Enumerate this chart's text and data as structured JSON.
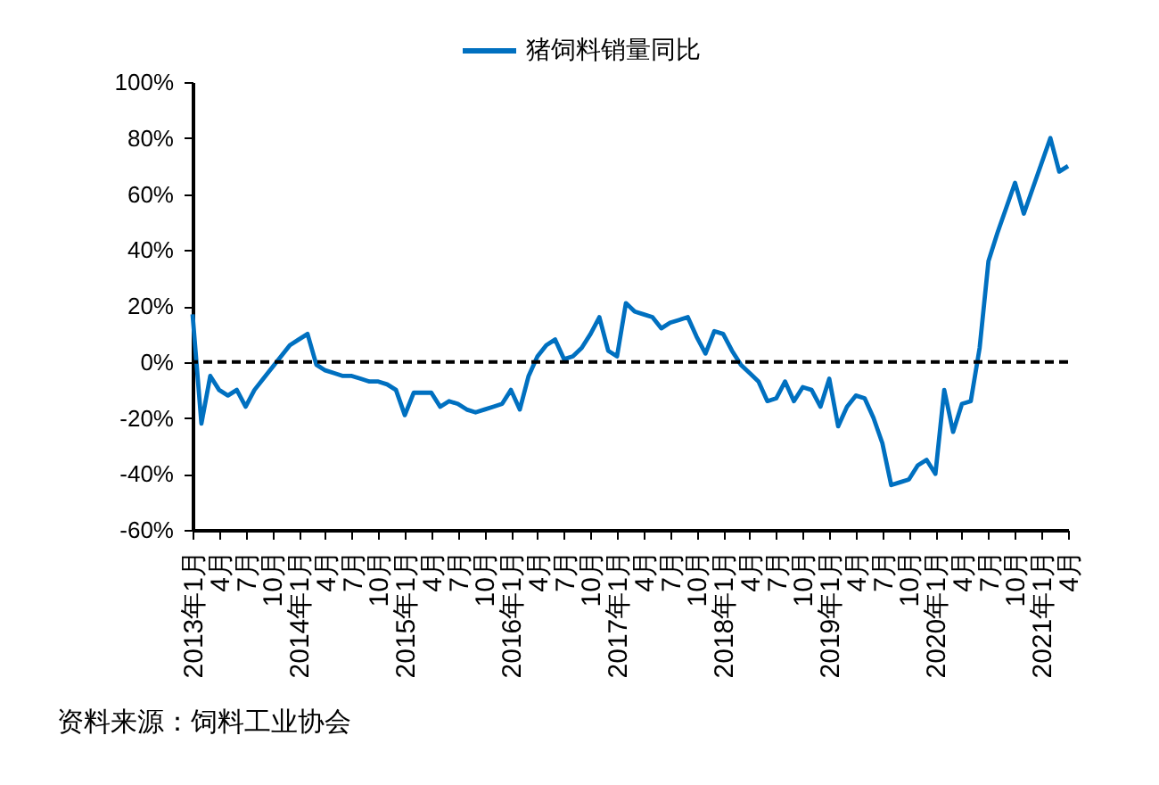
{
  "chart_data": {
    "type": "line",
    "categories": [
      "2013年1月",
      null,
      null,
      "4月",
      null,
      null,
      "7月",
      null,
      null,
      "10月",
      null,
      null,
      "2014年1月",
      null,
      null,
      "4月",
      null,
      null,
      "7月",
      null,
      null,
      "10月",
      null,
      null,
      "2015年1月",
      null,
      null,
      "4月",
      null,
      null,
      "7月",
      null,
      null,
      "10月",
      null,
      null,
      "2016年1月",
      null,
      null,
      "4月",
      null,
      null,
      "7月",
      null,
      null,
      "10月",
      null,
      null,
      "2017年1月",
      null,
      null,
      "4月",
      null,
      null,
      "7月",
      null,
      null,
      "10月",
      null,
      null,
      "2018年1月",
      null,
      null,
      "4月",
      null,
      null,
      "7月",
      null,
      null,
      "10月",
      null,
      null,
      "2019年1月",
      null,
      null,
      "4月",
      null,
      null,
      "7月",
      null,
      null,
      "10月",
      null,
      null,
      "2020年1月",
      null,
      null,
      "4月",
      null,
      null,
      "7月",
      null,
      null,
      "10月",
      null,
      null,
      "2021年1月",
      null,
      null,
      "4月"
    ],
    "series": [
      {
        "name": "猪饲料销量同比",
        "color": "#0070c0",
        "values": [
          17,
          -22,
          -5,
          -10,
          -12,
          -10,
          -16,
          -10,
          -6,
          -2,
          2,
          6,
          8,
          10,
          -1,
          -3,
          -4,
          -5,
          -5,
          -6,
          -7,
          -7,
          -8,
          -10,
          -19,
          -11,
          -11,
          -11,
          -16,
          -14,
          -15,
          -17,
          -18,
          -17,
          -16,
          -15,
          -10,
          -17,
          -5,
          2,
          6,
          8,
          1,
          2,
          5,
          10,
          16,
          4,
          2,
          21,
          18,
          17,
          16,
          12,
          14,
          15,
          16,
          9,
          3,
          11,
          10,
          4,
          -1,
          -4,
          -7,
          -14,
          -13,
          -7,
          -14,
          -9,
          -10,
          -16,
          -6,
          -23,
          -16,
          -12,
          -13,
          -20,
          -29,
          -44,
          -43,
          -42,
          -37,
          -35,
          -40,
          -10,
          -25,
          -15,
          -14,
          5,
          36,
          46,
          55,
          64,
          53,
          62,
          71,
          80,
          68,
          70
        ]
      }
    ],
    "ylim": [
      -60,
      100
    ],
    "yticks": [
      {
        "value": -60,
        "label": "-60%"
      },
      {
        "value": -40,
        "label": "-40%"
      },
      {
        "value": -20,
        "label": "-20%"
      },
      {
        "value": 0,
        "label": "0%"
      },
      {
        "value": 20,
        "label": "20%"
      },
      {
        "value": 40,
        "label": "40%"
      },
      {
        "value": 60,
        "label": "60%"
      },
      {
        "value": 80,
        "label": "80%"
      },
      {
        "value": 100,
        "label": "100%"
      }
    ],
    "ref_lines": [
      {
        "axis": "y",
        "value": 0,
        "color": "#000000",
        "line_style": "dashed"
      }
    ],
    "legend": "top",
    "grid": false,
    "marker": "none",
    "line_style": "solid",
    "annotations": [
      "资料来源：饲料工业协会"
    ]
  }
}
